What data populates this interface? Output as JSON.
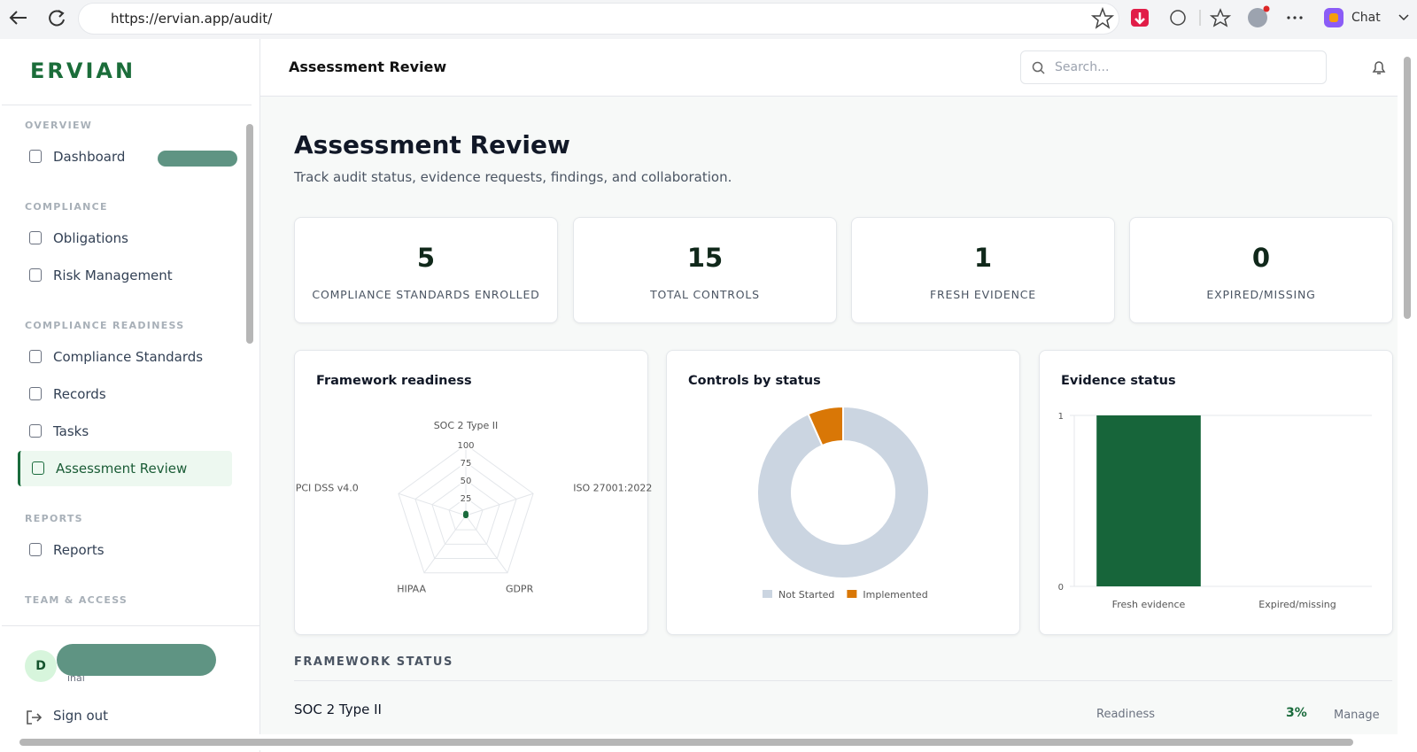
{
  "browser": {
    "url": "https://ervian.app/audit/",
    "chat_label": "Chat"
  },
  "sidebar": {
    "logo": "ERVIAN",
    "sections": [
      {
        "heading": "OVERVIEW",
        "items": [
          {
            "label": "Dashboard"
          }
        ]
      },
      {
        "heading": "COMPLIANCE",
        "items": [
          {
            "label": "Obligations"
          },
          {
            "label": "Risk Management"
          }
        ]
      },
      {
        "heading": "COMPLIANCE READINESS",
        "items": [
          {
            "label": "Compliance Standards"
          },
          {
            "label": "Records"
          },
          {
            "label": "Tasks"
          },
          {
            "label": "Assessment Review",
            "active": true
          }
        ]
      },
      {
        "heading": "REPORTS",
        "items": [
          {
            "label": "Reports"
          }
        ]
      },
      {
        "heading": "TEAM & ACCESS",
        "items": []
      }
    ],
    "user": {
      "avatar": "D",
      "role_fragment": "inal"
    },
    "sign_out": "Sign out"
  },
  "header": {
    "title": "Assessment Review",
    "search_placeholder": "Search..."
  },
  "page": {
    "heading": "Assessment Review",
    "subtitle": "Track audit status, evidence requests, findings, and collaboration."
  },
  "stats": [
    {
      "value": 5,
      "label": "COMPLIANCE STANDARDS ENROLLED"
    },
    {
      "value": 15,
      "label": "TOTAL CONTROLS"
    },
    {
      "value": 1,
      "label": "FRESH EVIDENCE"
    },
    {
      "value": 0,
      "label": "EXPIRED/MISSING"
    }
  ],
  "chart_data": [
    {
      "type": "radar",
      "title": "Framework readiness",
      "categories": [
        "SOC 2 Type II",
        "ISO 27001:2022",
        "GDPR",
        "HIPAA",
        "PCI DSS v4.0"
      ],
      "values": [
        3,
        0,
        0,
        0,
        0
      ],
      "color": "#1a6b3c",
      "rlim": [
        0,
        100
      ],
      "rticks": [
        25,
        50,
        75,
        100
      ]
    },
    {
      "type": "pie",
      "title": "Controls by status",
      "categories": [
        "Not Started",
        "Implemented"
      ],
      "values": [
        14,
        1
      ],
      "colors": [
        "#cbd5e1",
        "#d97706"
      ],
      "legend": "bottom"
    },
    {
      "type": "bar",
      "title": "Evidence status",
      "categories": [
        "Fresh evidence",
        "Expired/missing"
      ],
      "values": [
        1,
        0
      ],
      "color": "#17653a",
      "ylim": [
        0,
        1
      ],
      "yticks": [
        0,
        1
      ],
      "grid": true
    }
  ],
  "framework_status": {
    "heading": "FRAMEWORK STATUS",
    "rows": [
      {
        "name": "SOC 2 Type II",
        "readiness_label": "Readiness",
        "readiness": "3%",
        "action": "Manage"
      }
    ]
  }
}
